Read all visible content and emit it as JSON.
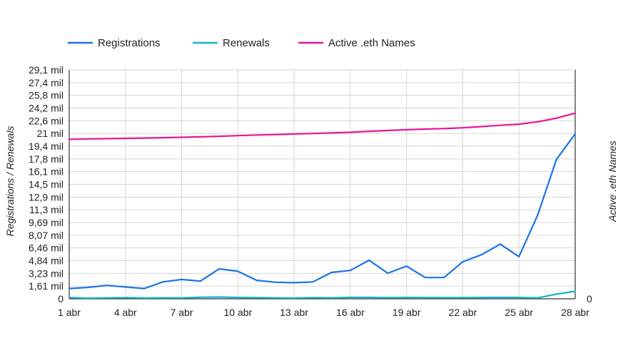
{
  "chart_data": {
    "type": "line",
    "x": [
      "1 abr",
      "2 abr",
      "3 abr",
      "4 abr",
      "5 abr",
      "6 abr",
      "7 abr",
      "8 abr",
      "9 abr",
      "10 abr",
      "11 abr",
      "12 abr",
      "13 abr",
      "14 abr",
      "15 abr",
      "16 abr",
      "17 abr",
      "18 abr",
      "19 abr",
      "20 abr",
      "21 abr",
      "22 abr",
      "23 abr",
      "24 abr",
      "25 abr",
      "26 abr",
      "27 abr",
      "28 abr"
    ],
    "x_tick_labels": [
      "1 abr",
      "4 abr",
      "7 abr",
      "10 abr",
      "13 abr",
      "16 abr",
      "19 abr",
      "22 abr",
      "25 abr",
      "28 abr"
    ],
    "y_tick_labels": [
      "0",
      "1,61 mil",
      "3,23 mil",
      "4,84 mil",
      "6,46 mil",
      "8,07 mil",
      "9,69 mil",
      "11,3 mil",
      "12,9 mil",
      "14,5 mil",
      "16,1 mil",
      "17,8 mil",
      "19,4 mil",
      "21 mil",
      "22,6 mil",
      "24,2 mil",
      "25,8 mil",
      "27,4 mil",
      "29,1 mil"
    ],
    "y_tick_values": [
      0,
      1615,
      3230,
      4845,
      6460,
      8075,
      9690,
      11305,
      12920,
      14535,
      16150,
      17765,
      19380,
      20995,
      22610,
      24225,
      25840,
      27455,
      29070
    ],
    "y2_tick_labels": [
      "0"
    ],
    "ylabel": "Registrations / Renewals",
    "y2label": "Active .eth Names",
    "ylim": [
      0,
      29070
    ],
    "legend_position": "top",
    "grid": true,
    "series": [
      {
        "name": "Registrations",
        "color": "#1a73e8",
        "axis": "left",
        "values": [
          1300,
          1450,
          1700,
          1500,
          1300,
          2150,
          2450,
          2250,
          3800,
          3500,
          2350,
          2100,
          2050,
          2150,
          3350,
          3600,
          4900,
          3250,
          4150,
          2700,
          2700,
          4700,
          5600,
          6950,
          5350,
          10650,
          17700,
          20950
        ]
      },
      {
        "name": "Renewals",
        "color": "#12b5cb",
        "axis": "left",
        "values": [
          150,
          80,
          120,
          150,
          100,
          130,
          120,
          200,
          230,
          170,
          150,
          120,
          100,
          150,
          130,
          180,
          180,
          150,
          170,
          160,
          150,
          150,
          170,
          180,
          170,
          120,
          600,
          950
        ]
      },
      {
        "name": "Active .eth Names",
        "color": "#e8149b",
        "axis": "right",
        "values": [
          20260,
          20300,
          20340,
          20380,
          20410,
          20460,
          20510,
          20570,
          20640,
          20720,
          20800,
          20860,
          20930,
          20990,
          21060,
          21150,
          21270,
          21370,
          21470,
          21550,
          21620,
          21720,
          21870,
          22030,
          22180,
          22480,
          22940,
          23570
        ]
      }
    ]
  }
}
